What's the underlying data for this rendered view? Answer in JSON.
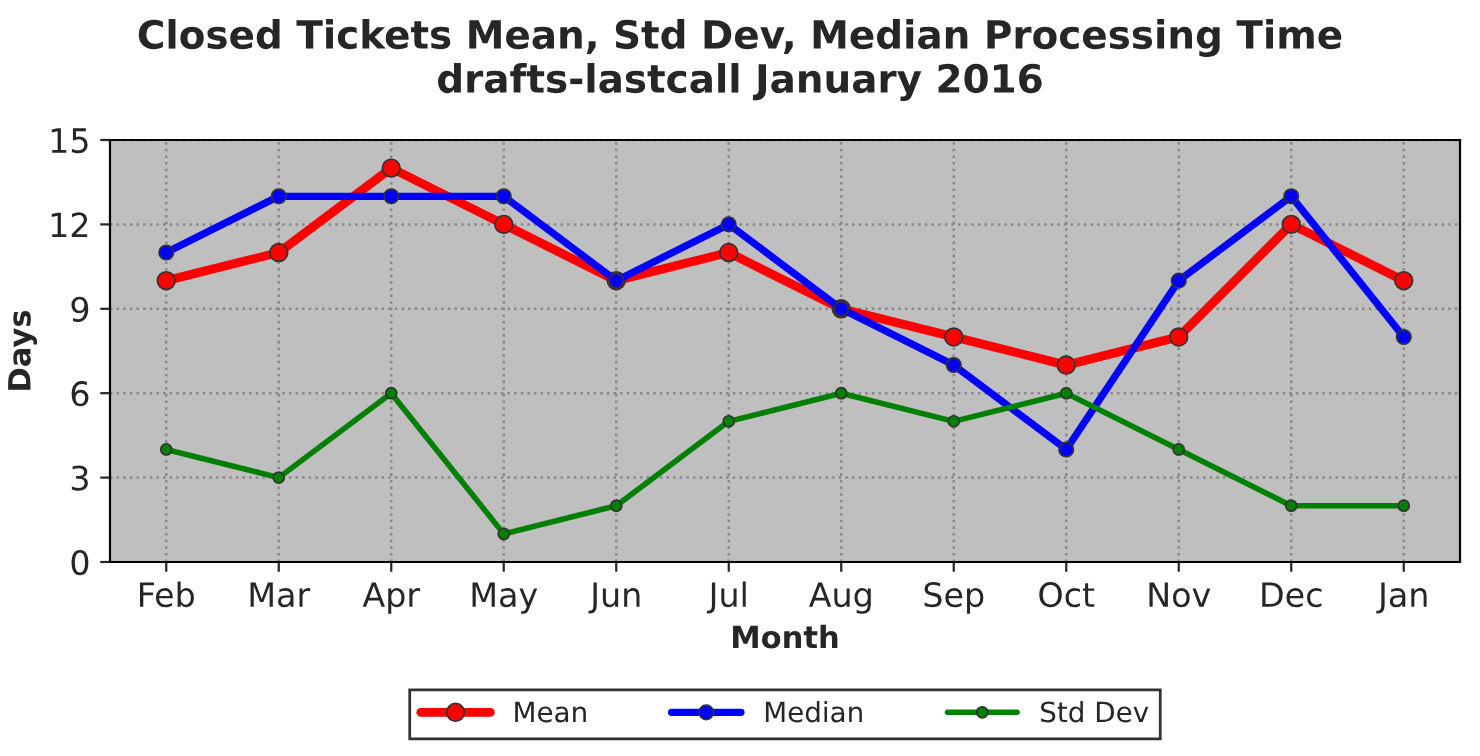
{
  "chart_data": {
    "type": "line",
    "title": "Closed Tickets Mean, Std Dev, Median Processing Time",
    "subtitle": "drafts-lastcall January 2016",
    "xlabel": "Month",
    "ylabel": "Days",
    "categories": [
      "Feb",
      "Mar",
      "Apr",
      "May",
      "Jun",
      "Jul",
      "Aug",
      "Sep",
      "Oct",
      "Nov",
      "Dec",
      "Jan"
    ],
    "series": [
      {
        "name": "Mean",
        "color": "#ff0000",
        "values": [
          10,
          11,
          14,
          12,
          10,
          11,
          9,
          8,
          7,
          8,
          12,
          10
        ]
      },
      {
        "name": "Median",
        "color": "#0000ff",
        "values": [
          11,
          13,
          13,
          13,
          10,
          12,
          9,
          7,
          4,
          10,
          13,
          8
        ]
      },
      {
        "name": "Std Dev",
        "color": "#008000",
        "values": [
          4,
          3,
          6,
          1,
          2,
          5,
          6,
          5,
          6,
          4,
          2,
          2
        ]
      }
    ],
    "ylim": [
      0,
      15
    ],
    "yticks": [
      0,
      3,
      6,
      9,
      12,
      15
    ],
    "grid": true,
    "legend": "bottom",
    "marker": "circle",
    "line_style": "solid"
  }
}
